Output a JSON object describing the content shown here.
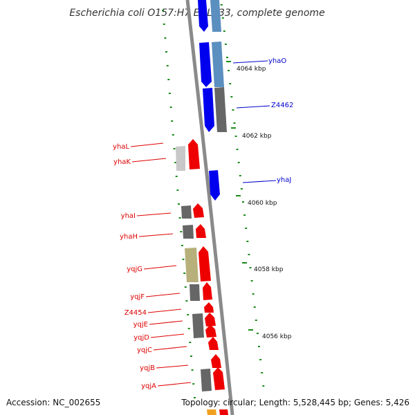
{
  "title": "Escherichia coli O157:H7 EDL933, complete genome",
  "footer": {
    "accession": "Accession: NC_002655",
    "topology": "Topology: circular; Length: 5,528,445 bp; Genes: 5,426"
  },
  "ticks": [
    {
      "label": "4064 kbp"
    },
    {
      "label": "4062 kbp"
    },
    {
      "label": "4060 kbp"
    },
    {
      "label": "4058 kbp"
    },
    {
      "label": "4056 kbp"
    }
  ],
  "labels_left": [
    {
      "name": "yhaL"
    },
    {
      "name": "yhaK"
    },
    {
      "name": "yhaI"
    },
    {
      "name": "yhaH"
    },
    {
      "name": "yqjG"
    },
    {
      "name": "yqjF"
    },
    {
      "name": "Z4454"
    },
    {
      "name": "yqjE"
    },
    {
      "name": "yqjD"
    },
    {
      "name": "yqjC"
    },
    {
      "name": "yqjB"
    },
    {
      "name": "yqjA"
    }
  ],
  "labels_right": [
    {
      "name": "yhaO"
    },
    {
      "name": "Z4462"
    },
    {
      "name": "yhaJ"
    }
  ],
  "colors": {
    "backbone": "#8a8a8a",
    "forward": "#ee0000",
    "reverse": "#0000ee",
    "steel": "#5b8fc0",
    "gray": "#666666",
    "lightgray": "#c8c8c8",
    "khaki": "#b8b07a",
    "dots": "#1a8a1a",
    "label_left": "#dd0000",
    "label_right": "#0000cc"
  }
}
